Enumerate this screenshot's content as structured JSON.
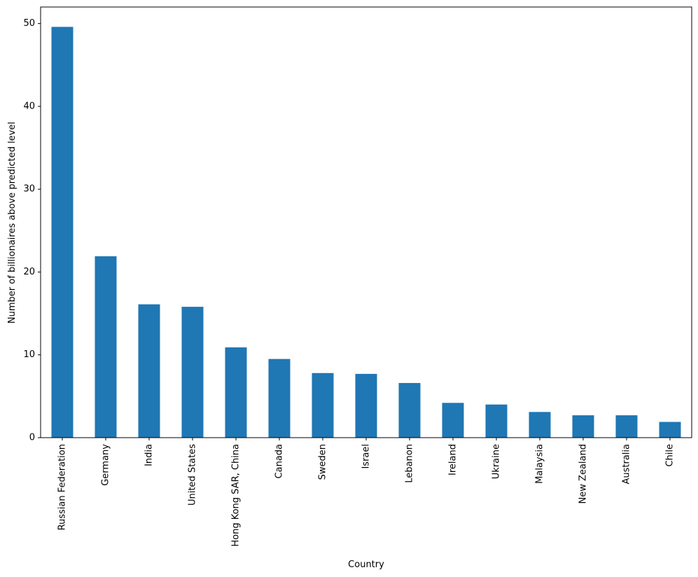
{
  "chart_data": {
    "type": "bar",
    "xlabel": "Country",
    "ylabel": "Number of billionaires above predicted level",
    "categories": [
      "Russian Federation",
      "Germany",
      "India",
      "United States",
      "Hong Kong SAR, China",
      "Canada",
      "Sweden",
      "Israel",
      "Lebanon",
      "Ireland",
      "Ukraine",
      "Malaysia",
      "New Zealand",
      "Australia",
      "Chile"
    ],
    "values": [
      49.6,
      21.9,
      16.1,
      15.8,
      10.9,
      9.5,
      7.8,
      7.7,
      6.6,
      4.2,
      4.0,
      3.1,
      2.7,
      2.7,
      1.9
    ],
    "color": "#1f77b4",
    "ylim": [
      0,
      52.0
    ],
    "yticks": [
      0,
      10,
      20,
      30,
      40,
      50
    ],
    "grid": false
  }
}
